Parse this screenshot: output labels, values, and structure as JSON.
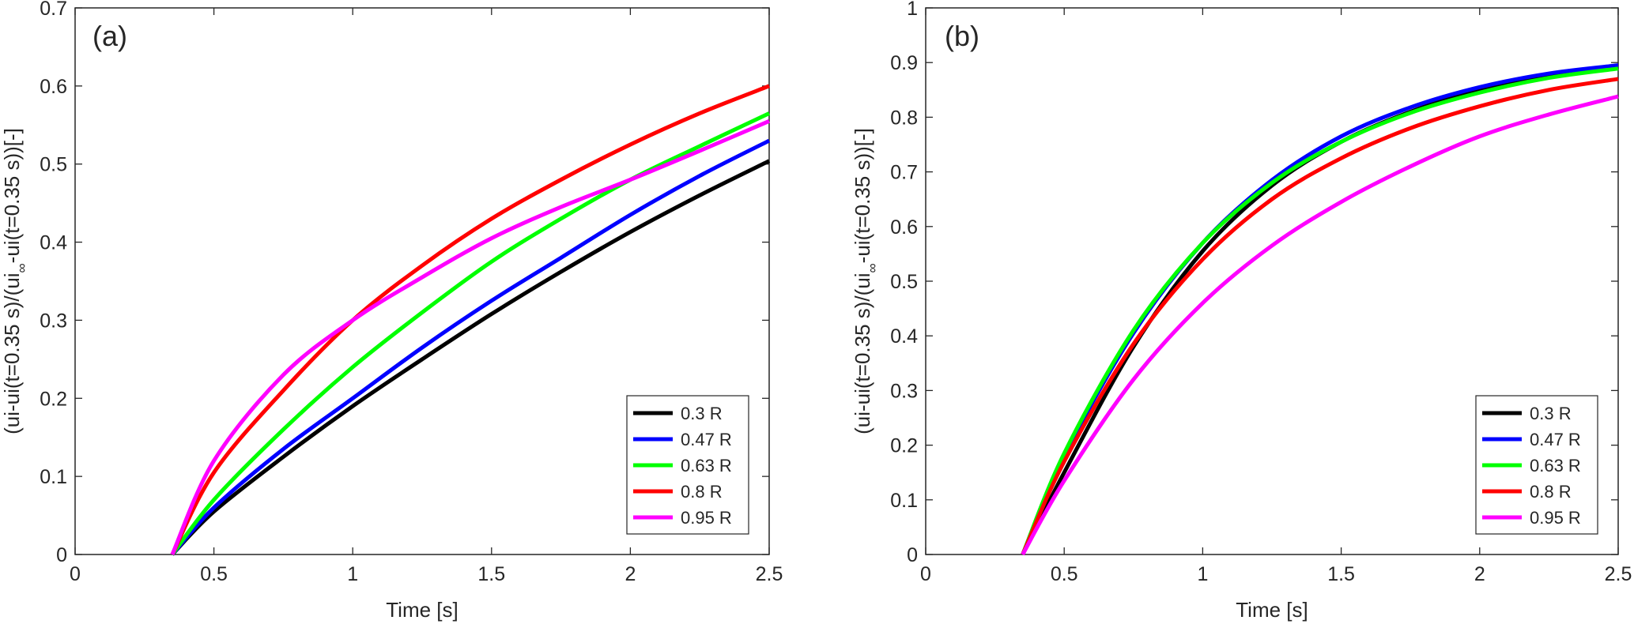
{
  "chart_data": [
    {
      "type": "line",
      "panel_label": "(a)",
      "xlabel": "Time [s]",
      "ylabel": "(ui-ui(t=0.35 s)/(ui",
      "ylabel_sub": "∞",
      "ylabel_tail": "-ui(t=0.35 s))[-]",
      "xlim": [
        0,
        2.5
      ],
      "ylim": [
        0,
        0.7
      ],
      "xticks": [
        0,
        0.5,
        1,
        1.5,
        2,
        2.5
      ],
      "xtick_labels": [
        "0",
        "0.5",
        "1",
        "1.5",
        "2",
        "2.5"
      ],
      "yticks": [
        0,
        0.1,
        0.2,
        0.3,
        0.4,
        0.5,
        0.6,
        0.7
      ],
      "ytick_labels": [
        "0",
        "0.1",
        "0.2",
        "0.3",
        "0.4",
        "0.5",
        "0.6",
        "0.7"
      ],
      "grid": false,
      "legend_position": "bottom-right",
      "series": [
        {
          "name": "0.3 R",
          "color": "#000000",
          "x": [
            0.35,
            0.5,
            0.75,
            1.0,
            1.25,
            1.5,
            1.75,
            2.0,
            2.25,
            2.5
          ],
          "y": [
            0,
            0.055,
            0.125,
            0.19,
            0.25,
            0.308,
            0.362,
            0.413,
            0.46,
            0.504
          ]
        },
        {
          "name": "0.47 R",
          "color": "#0000ff",
          "x": [
            0.35,
            0.5,
            0.75,
            1.0,
            1.25,
            1.5,
            1.75,
            2.0,
            2.25,
            2.5
          ],
          "y": [
            0,
            0.06,
            0.135,
            0.2,
            0.265,
            0.325,
            0.38,
            0.435,
            0.485,
            0.53
          ]
        },
        {
          "name": "0.63 R",
          "color": "#00ff00",
          "x": [
            0.35,
            0.5,
            0.75,
            1.0,
            1.25,
            1.5,
            1.75,
            2.0,
            2.25,
            2.5
          ],
          "y": [
            0,
            0.07,
            0.16,
            0.24,
            0.31,
            0.375,
            0.43,
            0.48,
            0.523,
            0.565
          ]
        },
        {
          "name": "0.8 R",
          "color": "#ff0000",
          "x": [
            0.35,
            0.5,
            0.75,
            1.0,
            1.25,
            1.5,
            1.75,
            2.0,
            2.25,
            2.5
          ],
          "y": [
            0,
            0.105,
            0.21,
            0.3,
            0.37,
            0.43,
            0.48,
            0.525,
            0.565,
            0.6
          ]
        },
        {
          "name": "0.95 R",
          "color": "#ff00ff",
          "x": [
            0.35,
            0.5,
            0.75,
            1.0,
            1.25,
            1.5,
            1.75,
            2.0,
            2.25,
            2.5
          ],
          "y": [
            0,
            0.12,
            0.23,
            0.3,
            0.355,
            0.405,
            0.445,
            0.48,
            0.517,
            0.555
          ]
        }
      ]
    },
    {
      "type": "line",
      "panel_label": "(b)",
      "xlabel": "Time [s]",
      "ylabel": "(ui-ui(t=0.35 s)/(ui",
      "ylabel_sub": "∞",
      "ylabel_tail": "-ui(t=0.35 s))[-]",
      "xlim": [
        0,
        2.5
      ],
      "ylim": [
        0,
        1
      ],
      "xticks": [
        0,
        0.5,
        1,
        1.5,
        2,
        2.5
      ],
      "xtick_labels": [
        "0",
        "0.5",
        "1",
        "1.5",
        "2",
        "2.5"
      ],
      "yticks": [
        0,
        0.1,
        0.2,
        0.3,
        0.4,
        0.5,
        0.6,
        0.7,
        0.8,
        0.9,
        1
      ],
      "ytick_labels": [
        "0",
        "0.1",
        "0.2",
        "0.3",
        "0.4",
        "0.5",
        "0.6",
        "0.7",
        "0.8",
        "0.9",
        "1"
      ],
      "grid": false,
      "legend_position": "bottom-right",
      "series": [
        {
          "name": "0.3 R",
          "color": "#000000",
          "x": [
            0.35,
            0.5,
            0.75,
            1.0,
            1.25,
            1.5,
            1.75,
            2.0,
            2.25,
            2.5
          ],
          "y": [
            0,
            0.15,
            0.38,
            0.555,
            0.675,
            0.755,
            0.81,
            0.85,
            0.875,
            0.893
          ]
        },
        {
          "name": "0.47 R",
          "color": "#0000ff",
          "x": [
            0.35,
            0.5,
            0.75,
            1.0,
            1.25,
            1.5,
            1.75,
            2.0,
            2.25,
            2.5
          ],
          "y": [
            0,
            0.18,
            0.405,
            0.57,
            0.685,
            0.765,
            0.818,
            0.855,
            0.88,
            0.895
          ]
        },
        {
          "name": "0.63 R",
          "color": "#00ff00",
          "x": [
            0.35,
            0.5,
            0.75,
            1.0,
            1.25,
            1.5,
            1.75,
            2.0,
            2.25,
            2.5
          ],
          "y": [
            0,
            0.185,
            0.41,
            0.57,
            0.68,
            0.755,
            0.808,
            0.845,
            0.872,
            0.889
          ]
        },
        {
          "name": "0.8 R",
          "color": "#ff0000",
          "x": [
            0.35,
            0.5,
            0.75,
            1.0,
            1.25,
            1.5,
            1.75,
            2.0,
            2.25,
            2.5
          ],
          "y": [
            0,
            0.17,
            0.385,
            0.54,
            0.65,
            0.725,
            0.78,
            0.82,
            0.85,
            0.87
          ]
        },
        {
          "name": "0.95 R",
          "color": "#ff00ff",
          "x": [
            0.35,
            0.5,
            0.75,
            1.0,
            1.25,
            1.5,
            1.75,
            2.0,
            2.25,
            2.5
          ],
          "y": [
            0,
            0.135,
            0.32,
            0.46,
            0.565,
            0.645,
            0.71,
            0.765,
            0.805,
            0.838
          ]
        }
      ]
    }
  ]
}
